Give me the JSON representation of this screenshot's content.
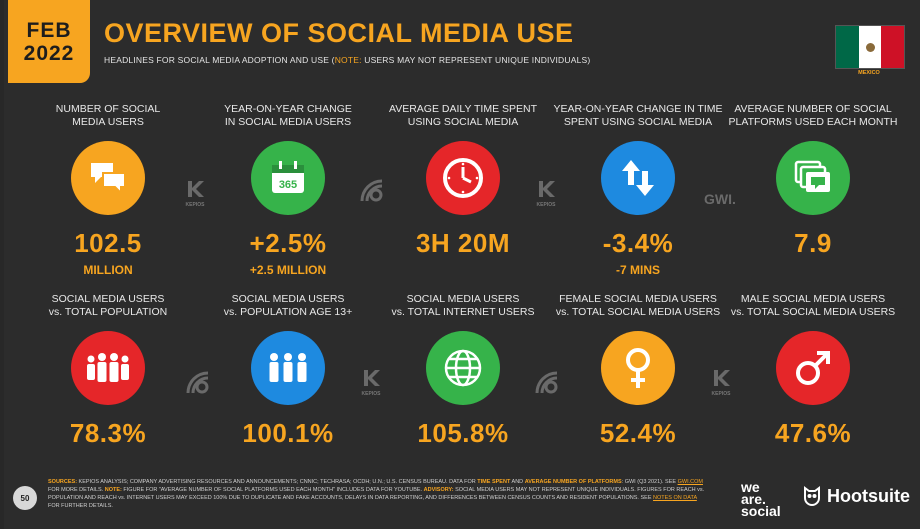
{
  "header": {
    "month": "FEB",
    "year": "2022",
    "title": "OVERVIEW OF SOCIAL MEDIA USE",
    "subtitle_pre": "HEADLINES FOR SOCIAL MEDIA ADOPTION AND USE (",
    "subtitle_note": "NOTE:",
    "subtitle_post": " USERS MAY NOT REPRESENT UNIQUE INDIVIDUALS)",
    "country": "MEXICO"
  },
  "row1": [
    {
      "label": "NUMBER OF SOCIAL\nMEDIA USERS",
      "value": "102.5",
      "sub": "MILLION",
      "icon": "chat-bubbles-icon",
      "color": "#f7a520"
    },
    {
      "label": "YEAR-ON-YEAR CHANGE\nIN SOCIAL MEDIA USERS",
      "value": "+2.5%",
      "sub": "+2.5 MILLION",
      "icon": "calendar-365-icon",
      "color": "#36b34a"
    },
    {
      "label": "AVERAGE DAILY TIME SPENT\nUSING SOCIAL MEDIA",
      "value": "3H 20M",
      "sub": "",
      "icon": "clock-icon",
      "color": "#e52629"
    },
    {
      "label": "YEAR-ON-YEAR CHANGE IN TIME\nSPENT USING SOCIAL MEDIA",
      "value": "-3.4%",
      "sub": "-7 MINS",
      "icon": "up-down-arrows-icon",
      "color": "#1e8ae0"
    },
    {
      "label": "AVERAGE NUMBER OF SOCIAL\nPLATFORMS USED EACH MONTH",
      "value": "7.9",
      "sub": "",
      "icon": "stacked-windows-icon",
      "color": "#36b34a"
    }
  ],
  "row2": [
    {
      "label": "SOCIAL MEDIA USERS\nvs. TOTAL POPULATION",
      "value": "78.3%",
      "icon": "crowd-icon",
      "color": "#e52629"
    },
    {
      "label": "SOCIAL MEDIA USERS\nvs. POPULATION AGE 13+",
      "value": "100.1%",
      "icon": "adults-icon",
      "color": "#1e8ae0"
    },
    {
      "label": "SOCIAL MEDIA USERS\nvs. TOTAL INTERNET USERS",
      "value": "105.8%",
      "icon": "globe-icon",
      "color": "#36b34a"
    },
    {
      "label": "FEMALE SOCIAL MEDIA USERS\nvs. TOTAL SOCIAL MEDIA USERS",
      "value": "52.4%",
      "icon": "female-symbol-icon",
      "color": "#f7a520"
    },
    {
      "label": "MALE SOCIAL MEDIA USERS\nvs. TOTAL SOCIAL MEDIA USERS",
      "value": "47.6%",
      "icon": "male-symbol-icon",
      "color": "#e52629"
    }
  ],
  "source_logos": {
    "kepios": "KEPIOS",
    "gwi": "GWI."
  },
  "footer": {
    "sources_label": "SOURCES:",
    "text1": " KEPIOS ANALYSIS; COMPANY ADVERTISING RESOURCES AND ANNOUNCEMENTS; CNNIC; TECHRASA; OCDH; U.N.; U.S. CENSUS BUREAU. DATA FOR ",
    "hl1": "TIME SPENT",
    "text2": " AND ",
    "hl2": "AVERAGE NUMBER OF PLATFORMS",
    "text3": ": GWI (Q3 2021). SEE ",
    "link1": "GWI.COM",
    "text4": " FOR MORE DETAILS. ",
    "hl3": "NOTE:",
    "text5": " FIGURE FOR \"AVERAGE NUMBER OF SOCIAL PLATFORMS USED EACH MONTH\" INCLUDES DATA FOR YOUTUBE. ",
    "hl4": "ADVISORY:",
    "text6": " SOCIAL MEDIA USERS MAY NOT REPRESENT UNIQUE INDIVIDUALS. FIGURES FOR REACH vs. POPULATION AND REACH vs. INTERNET USERS MAY EXCEED 100% DUE TO DUPLICATE AND FAKE ACCOUNTS, DELAYS IN DATA REPORTING, AND DIFFERENCES BETWEEN CENSUS COUNTS AND RESIDENT POPULATIONS. SEE ",
    "link2": "NOTES ON DATA",
    "text7": " FOR FURTHER DETAILS.",
    "page": "50"
  },
  "brands": {
    "was_line1": "we",
    "was_line2": "are.",
    "was_line3": "social",
    "hootsuite": "Hootsuite"
  }
}
